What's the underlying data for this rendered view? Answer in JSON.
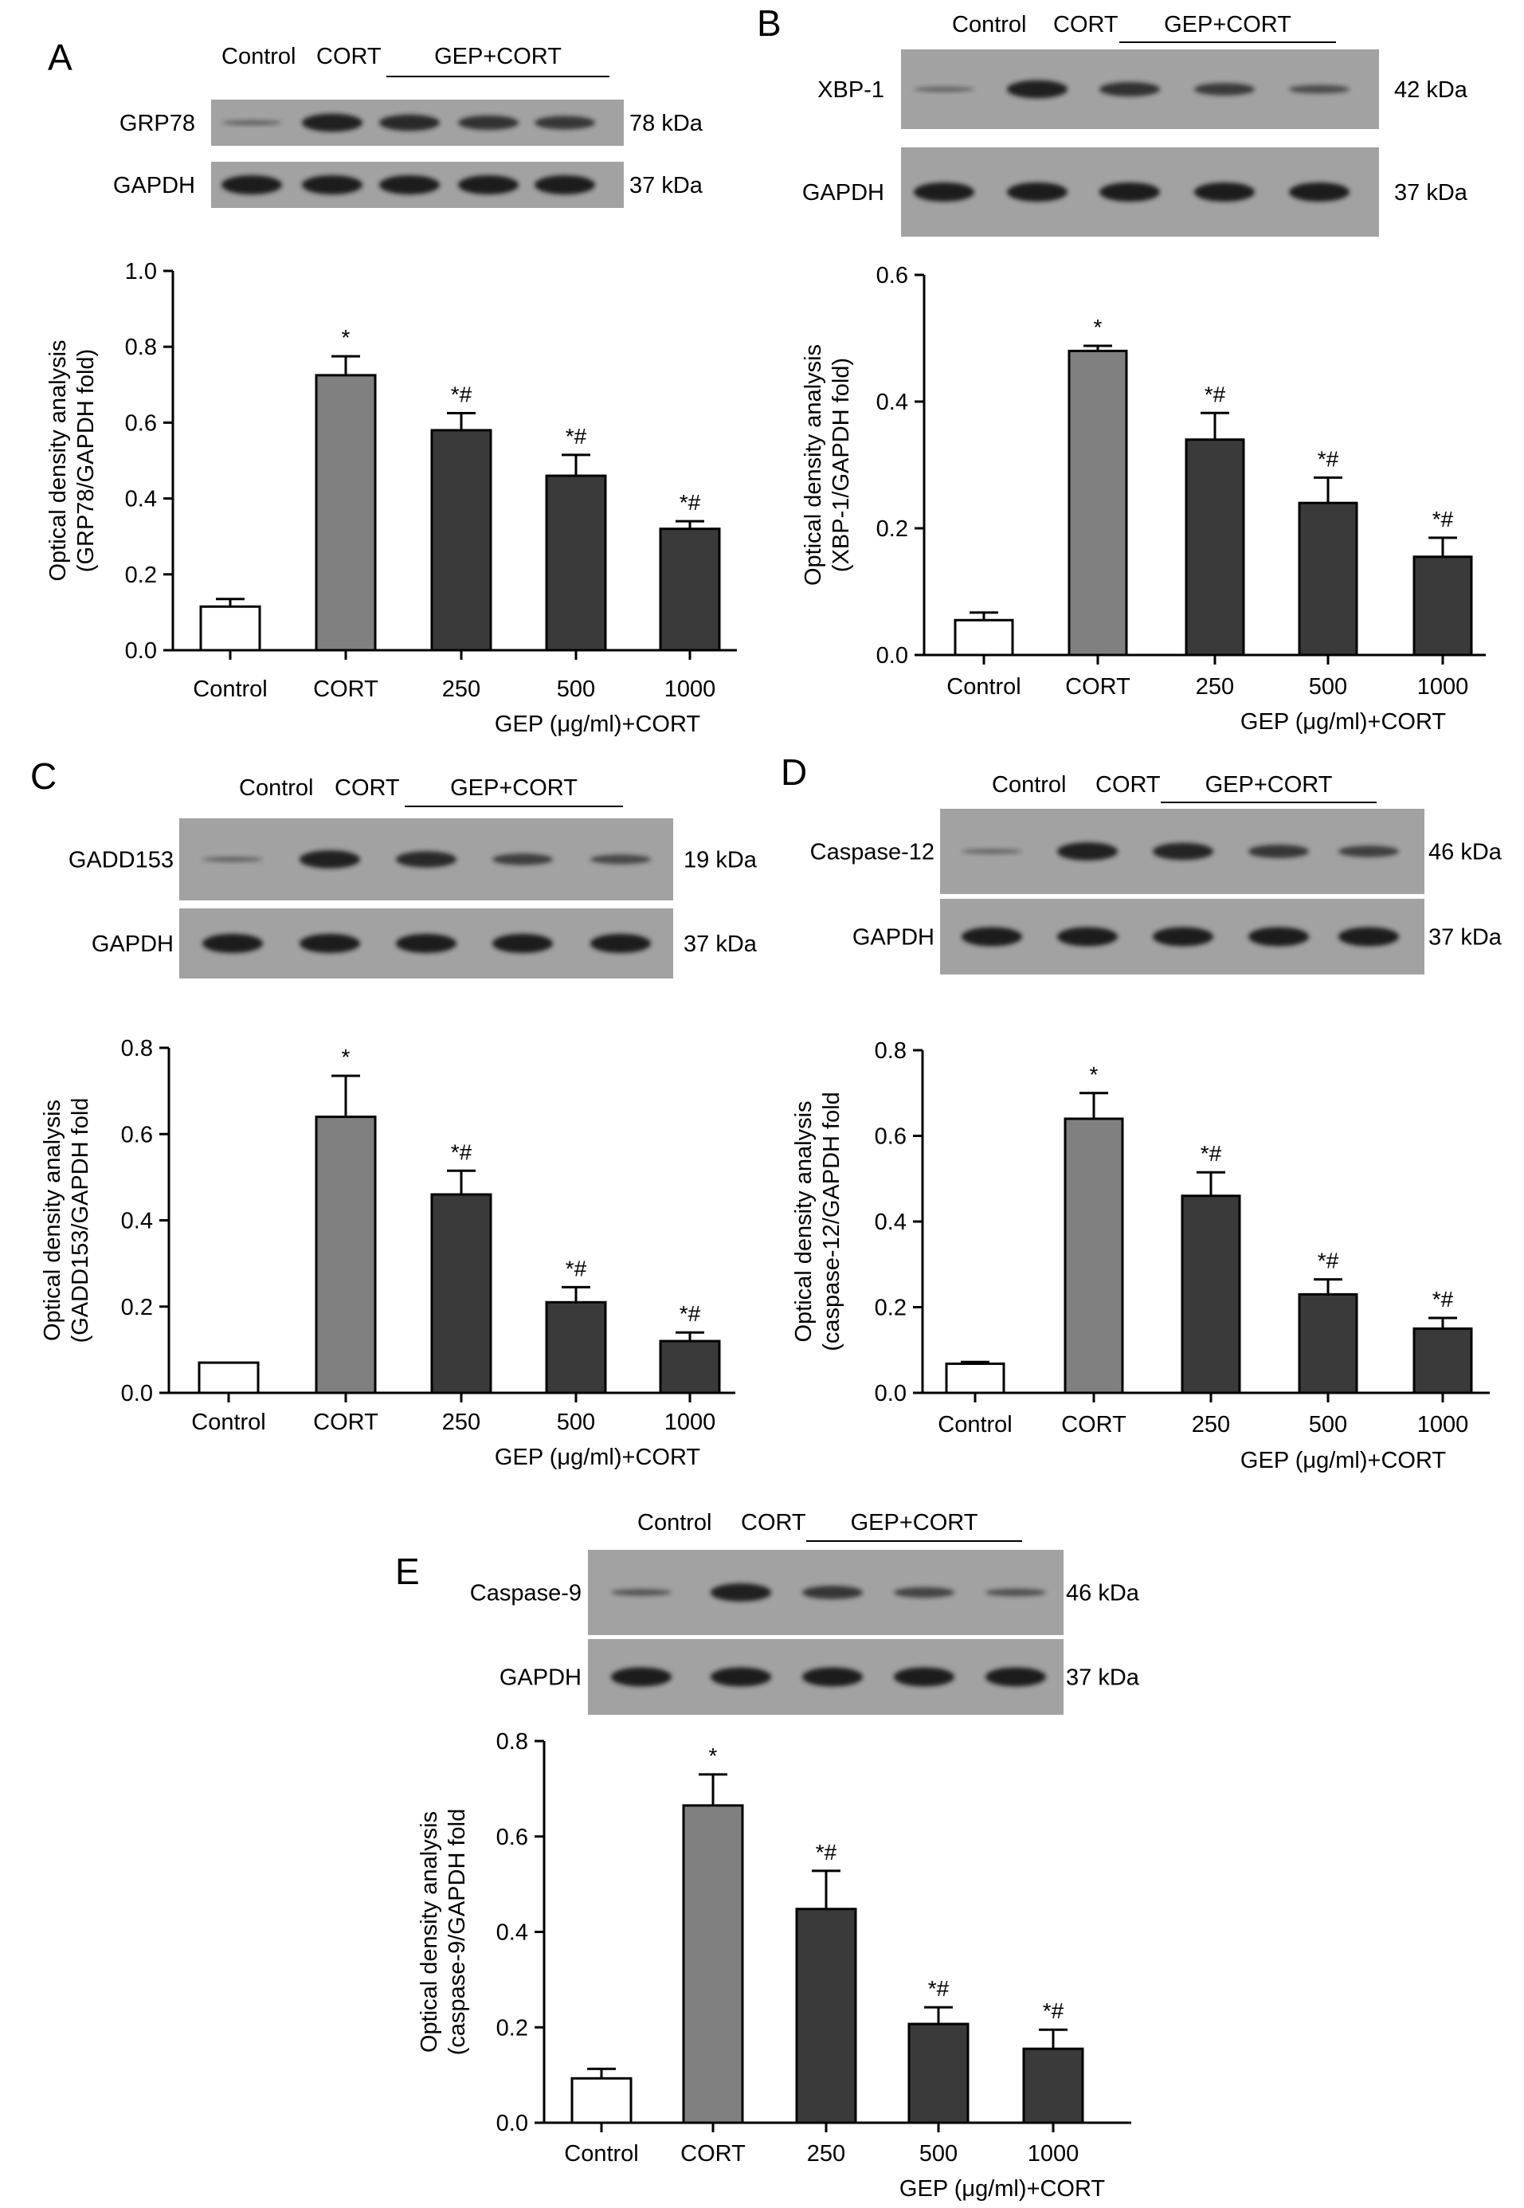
{
  "colors": {
    "control_fill": "#ffffff",
    "cort_fill": "#808080",
    "gep_fill": "#3a3a3a",
    "axis": "#000000",
    "blot_bg": "#a2a2a2",
    "band": "#1c1c1c"
  },
  "chart_data": [
    {
      "type": "bar",
      "panel": "A",
      "blot": {
        "group_labels": [
          "Control",
          "CORT",
          "GEP+CORT"
        ],
        "rows": [
          {
            "protein": "GRP78",
            "kda": "78 kDa",
            "intensity": [
              0.25,
              0.95,
              0.85,
              0.75,
              0.7
            ]
          },
          {
            "protein": "GAPDH",
            "kda": "37 kDa",
            "intensity": [
              1,
              1,
              1,
              1,
              1
            ]
          }
        ]
      },
      "categories": [
        "Control",
        "CORT",
        "250",
        "500",
        "1000"
      ],
      "values": [
        0.115,
        0.725,
        0.58,
        0.46,
        0.32
      ],
      "errors": [
        0.02,
        0.05,
        0.045,
        0.055,
        0.02
      ],
      "significance": [
        "",
        "*",
        "*#",
        "*#",
        "*#"
      ],
      "ylabel_line1": "Optical density analysis",
      "ylabel_line2": "(GRP78/GAPDH fold)",
      "xlabel": "GEP (μg/ml)+CORT",
      "ylim": [
        0,
        1.0
      ],
      "yticks": [
        "0.0",
        "0.2",
        "0.4",
        "0.6",
        "0.8",
        "1.0"
      ]
    },
    {
      "type": "bar",
      "panel": "B",
      "blot": {
        "group_labels": [
          "Control",
          "CORT",
          "GEP+CORT"
        ],
        "rows": [
          {
            "protein": "XBP-1",
            "kda": "42 kDa",
            "intensity": [
              0.25,
              0.95,
              0.75,
              0.65,
              0.45
            ]
          },
          {
            "protein": "GAPDH",
            "kda": "37 kDa",
            "intensity": [
              1,
              1,
              1,
              1,
              1
            ]
          }
        ]
      },
      "categories": [
        "Control",
        "CORT",
        "250",
        "500",
        "1000"
      ],
      "values": [
        0.055,
        0.48,
        0.34,
        0.24,
        0.155
      ],
      "errors": [
        0.012,
        0.008,
        0.042,
        0.04,
        0.03
      ],
      "significance": [
        "",
        "*",
        "*#",
        "*#",
        "*#"
      ],
      "ylabel_line1": "Optical density analysis",
      "ylabel_line2": "(XBP-1/GAPDH fold)",
      "xlabel": "GEP (μg/ml)+CORT",
      "ylim": [
        0,
        0.6
      ],
      "yticks": [
        "0.0",
        "0.2",
        "0.4",
        "0.6"
      ]
    },
    {
      "type": "bar",
      "panel": "C",
      "blot": {
        "group_labels": [
          "Control",
          "CORT",
          "GEP+CORT"
        ],
        "rows": [
          {
            "protein": "GADD153",
            "kda": "19 kDa",
            "intensity": [
              0.25,
              0.95,
              0.85,
              0.6,
              0.5
            ]
          },
          {
            "protein": "GAPDH",
            "kda": "37 kDa",
            "intensity": [
              1,
              1,
              1,
              1,
              1
            ]
          }
        ]
      },
      "categories": [
        "Control",
        "CORT",
        "250",
        "500",
        "1000"
      ],
      "values": [
        0.07,
        0.64,
        0.46,
        0.21,
        0.12
      ],
      "errors": [
        0.0,
        0.095,
        0.055,
        0.035,
        0.02
      ],
      "significance": [
        "",
        "*",
        "*#",
        "*#",
        "*#"
      ],
      "ylabel_line1": "Optical density analysis",
      "ylabel_line2": "(GADD153/GAPDH fold",
      "xlabel": "GEP (μg/ml)+CORT",
      "ylim": [
        0,
        0.8
      ],
      "yticks": [
        "0.0",
        "0.2",
        "0.4",
        "0.6",
        "0.8"
      ]
    },
    {
      "type": "bar",
      "panel": "D",
      "blot": {
        "group_labels": [
          "Control",
          "CORT",
          "GEP+CORT"
        ],
        "rows": [
          {
            "protein": "Caspase-12",
            "kda": "46 kDa",
            "intensity": [
              0.2,
              0.95,
              0.9,
              0.7,
              0.6
            ]
          },
          {
            "protein": "GAPDH",
            "kda": "37 kDa",
            "intensity": [
              1,
              1,
              1,
              1,
              1
            ]
          }
        ]
      },
      "categories": [
        "Control",
        "CORT",
        "250",
        "500",
        "1000"
      ],
      "values": [
        0.068,
        0.64,
        0.46,
        0.23,
        0.15
      ],
      "errors": [
        0.004,
        0.06,
        0.055,
        0.035,
        0.025
      ],
      "significance": [
        "",
        "*",
        "*#",
        "*#",
        "*#"
      ],
      "ylabel_line1": "Optical density analysis",
      "ylabel_line2": "(caspase-12/GAPDH fold",
      "xlabel": "GEP (μg/ml)+CORT",
      "ylim": [
        0,
        0.8
      ],
      "yticks": [
        "0.0",
        "0.2",
        "0.4",
        "0.6",
        "0.8"
      ]
    },
    {
      "type": "bar",
      "panel": "E",
      "blot": {
        "group_labels": [
          "Control",
          "CORT",
          "GEP+CORT"
        ],
        "rows": [
          {
            "protein": "Caspase-9",
            "kda": "46 kDa",
            "intensity": [
              0.35,
              0.95,
              0.7,
              0.55,
              0.4
            ]
          },
          {
            "protein": "GAPDH",
            "kda": "37 kDa",
            "intensity": [
              1,
              1,
              1,
              1,
              1
            ]
          }
        ]
      },
      "categories": [
        "Control",
        "CORT",
        "250",
        "500",
        "1000"
      ],
      "values": [
        0.093,
        0.665,
        0.448,
        0.207,
        0.155
      ],
      "errors": [
        0.02,
        0.065,
        0.08,
        0.035,
        0.04
      ],
      "significance": [
        "",
        "*",
        "*#",
        "*#",
        "*#"
      ],
      "ylabel_line1": "Optical density analysis",
      "ylabel_line2": "(caspase-9/GAPDH fold",
      "xlabel": "GEP (μg/ml)+CORT",
      "ylim": [
        0,
        0.8
      ],
      "yticks": [
        "0.0",
        "0.2",
        "0.4",
        "0.6",
        "0.8"
      ]
    }
  ]
}
